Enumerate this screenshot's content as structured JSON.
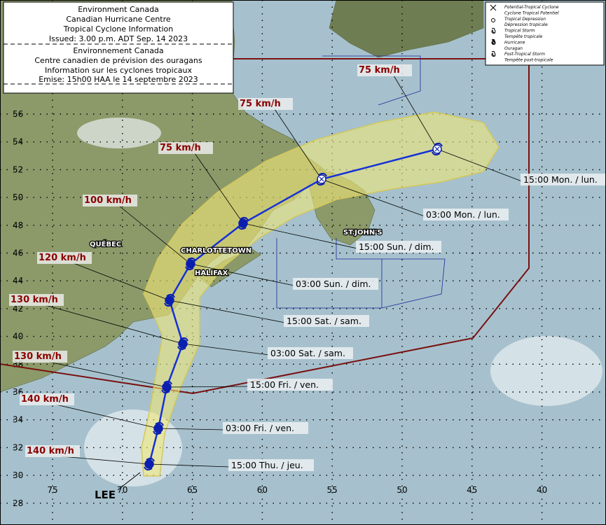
{
  "header": {
    "lines": [
      "Environment Canada",
      "Canadian Hurricane Centre",
      "Tropical Cyclone Information",
      "Issued: 3.00 p.m. ADT Sep. 14 2023",
      "Environnement Canada",
      "Centre canadien de prévision des ouragans",
      "Information sur les cyclones tropicaux",
      "Emise:  15h00 HAA le 14 septembre 2023"
    ]
  },
  "legend": [
    "Potential-Tropical Cyclone",
    "Cyclone Tropical Potentiel",
    "Tropical Depression",
    "Dépression tropicale",
    "Tropical Storm",
    "Tempête tropicale",
    "Hurricane",
    "Ouragan",
    "Post-Tropical Storm",
    "Tempête post-tropicale"
  ],
  "storm_name": "LEE",
  "places": [
    "QUÉBEC",
    "CHARLOTTETOWN",
    "HALIFAX",
    "ST.JOHN'S"
  ],
  "track": [
    {
      "time": "15:00 Thu. / jeu.",
      "wind": "140 km/h"
    },
    {
      "time": "03:00 Fri. / ven.",
      "wind": "140 km/h"
    },
    {
      "time": "15:00 Fri. / ven.",
      "wind": "130 km/h"
    },
    {
      "time": "03:00 Sat. / sam.",
      "wind": "130 km/h"
    },
    {
      "time": "15:00 Sat. / sam.",
      "wind": "120 km/h"
    },
    {
      "time": "03:00 Sun. / dim.",
      "wind": "100 km/h"
    },
    {
      "time": "15:00 Sun. / dim.",
      "wind": "75 km/h"
    },
    {
      "time": "03:00 Mon. / lun.",
      "wind": "75 km/h"
    },
    {
      "time": "15:00 Mon. / lun.",
      "wind": "75 km/h"
    }
  ],
  "latitudes": [
    56,
    54,
    52,
    50,
    48,
    46,
    44,
    42,
    40,
    38,
    36,
    34,
    32,
    30,
    28
  ],
  "longitudes": [
    75,
    70,
    65,
    60,
    55,
    50,
    45,
    40
  ]
}
